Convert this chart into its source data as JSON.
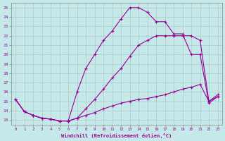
{
  "xlabel": "Windchill (Refroidissement éolien,°C)",
  "bg_color": "#c5e8e8",
  "line_color": "#990099",
  "grid_color": "#b0c8c8",
  "xlim": [
    -0.5,
    23.5
  ],
  "ylim": [
    12.5,
    25.5
  ],
  "xticks": [
    0,
    1,
    2,
    3,
    4,
    5,
    6,
    7,
    8,
    9,
    10,
    11,
    12,
    13,
    14,
    15,
    16,
    17,
    18,
    19,
    20,
    21,
    22,
    23
  ],
  "yticks": [
    13,
    14,
    15,
    16,
    17,
    18,
    19,
    20,
    21,
    22,
    23,
    24,
    25
  ],
  "curve1_x": [
    0,
    1,
    2,
    3,
    4,
    5,
    6,
    7,
    8,
    9,
    10,
    11,
    12,
    13,
    14,
    15,
    16,
    17,
    18,
    19,
    20,
    21,
    22,
    23
  ],
  "curve1_y": [
    15.2,
    13.9,
    13.5,
    13.2,
    13.1,
    12.9,
    12.9,
    13.2,
    14.2,
    15.2,
    16.3,
    17.5,
    18.5,
    19.8,
    21.0,
    21.5,
    22.0,
    22.0,
    22.0,
    22.0,
    22.0,
    21.5,
    15.0,
    15.5
  ],
  "curve2_x": [
    0,
    1,
    2,
    3,
    4,
    5,
    6,
    7,
    8,
    9,
    10,
    11,
    12,
    13,
    14,
    15,
    16,
    17,
    18,
    19,
    20,
    21,
    22,
    23
  ],
  "curve2_y": [
    15.2,
    13.9,
    13.5,
    13.2,
    13.1,
    12.9,
    12.9,
    16.0,
    18.5,
    20.0,
    21.5,
    22.5,
    23.8,
    25.0,
    25.0,
    24.5,
    23.5,
    23.5,
    22.2,
    22.2,
    20.0,
    20.0,
    14.8,
    15.5
  ],
  "curve3_x": [
    0,
    1,
    2,
    3,
    4,
    5,
    6,
    7,
    8,
    9,
    10,
    11,
    12,
    13,
    14,
    15,
    16,
    17,
    18,
    19,
    20,
    21,
    22,
    23
  ],
  "curve3_y": [
    15.2,
    13.9,
    13.5,
    13.2,
    13.1,
    12.9,
    12.9,
    13.2,
    13.5,
    13.8,
    14.2,
    14.5,
    14.8,
    15.0,
    15.2,
    15.3,
    15.5,
    15.7,
    16.0,
    16.3,
    16.5,
    16.8,
    15.0,
    15.7
  ]
}
